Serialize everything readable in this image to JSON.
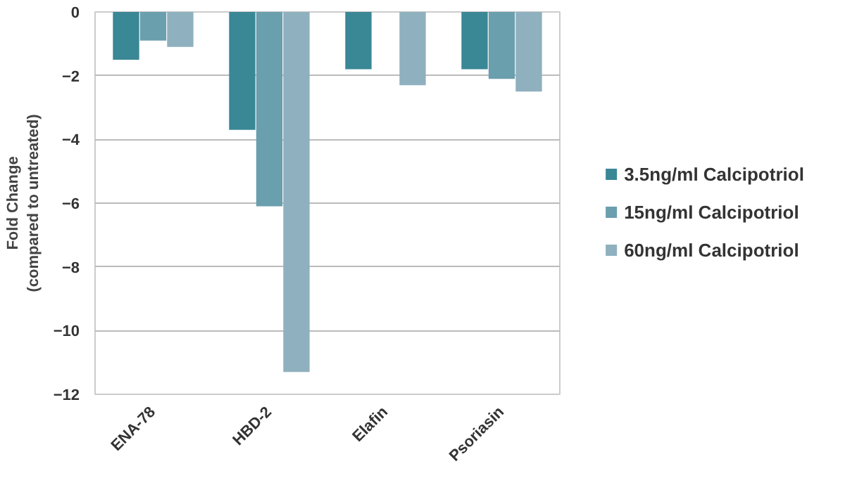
{
  "chart_data": {
    "type": "bar",
    "ylabel": "Fold Change\n(compared to untreated)",
    "categories": [
      "ENA-78",
      "HBD-2",
      "Elafin",
      "Psoriasin"
    ],
    "series": [
      {
        "name": "3.5ng/ml Calcipotriol",
        "color": "#3a8796",
        "values": [
          -1.5,
          -3.7,
          -1.8,
          -1.8
        ]
      },
      {
        "name": "15ng/ml Calcipotriol",
        "color": "#6a9fae",
        "values": [
          -0.9,
          -6.1,
          null,
          -2.1
        ]
      },
      {
        "name": "60ng/ml Calcipotriol",
        "color": "#8fb0be",
        "values": [
          -1.1,
          -11.3,
          -2.3,
          -2.5
        ]
      }
    ],
    "ylim": [
      -12,
      0
    ],
    "yticks": [
      -12,
      -10,
      -8,
      -6,
      -4,
      -2,
      0
    ],
    "grid": "y",
    "legend": "right"
  }
}
